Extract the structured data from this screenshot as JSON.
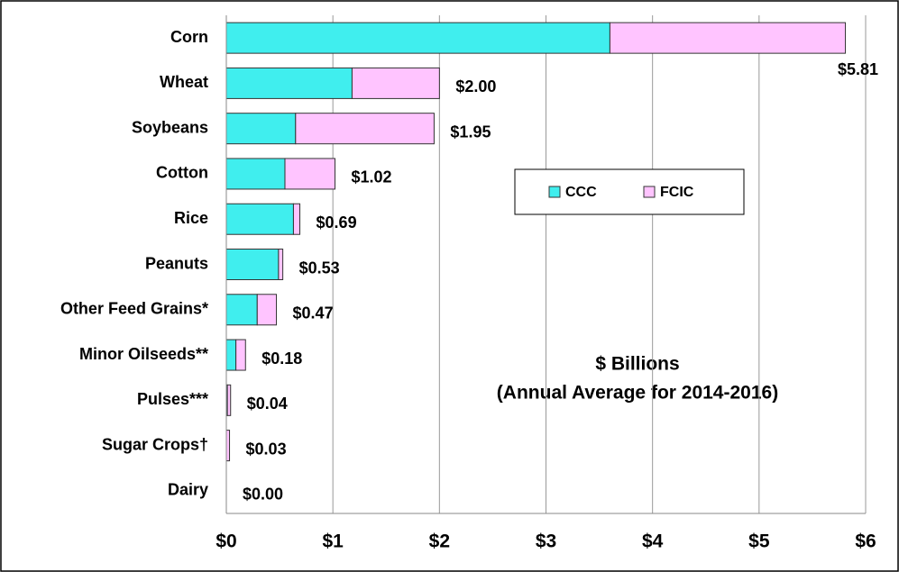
{
  "chart_data": {
    "type": "stacked-barh",
    "categories": [
      "Corn",
      "Wheat",
      "Soybeans",
      "Cotton",
      "Rice",
      "Peanuts",
      "Other Feed Grains*",
      "Minor Oilseeds**",
      "Pulses***",
      "Sugar Crops†",
      "Dairy"
    ],
    "series": [
      {
        "name": "CCC",
        "color": "#40eeee",
        "values": [
          3.6,
          1.18,
          0.65,
          0.55,
          0.63,
          0.49,
          0.29,
          0.09,
          0.01,
          0.0,
          0.0
        ]
      },
      {
        "name": "FCIC",
        "color": "#ffc4ff",
        "values": [
          2.21,
          0.82,
          1.3,
          0.47,
          0.06,
          0.04,
          0.18,
          0.09,
          0.03,
          0.03,
          0.0
        ]
      }
    ],
    "totals": [
      5.81,
      2.0,
      1.95,
      1.02,
      0.69,
      0.53,
      0.47,
      0.18,
      0.04,
      0.03,
      0.0
    ],
    "total_labels": [
      "$5.81",
      "$2.00",
      "$1.95",
      "$1.02",
      "$0.69",
      "$0.53",
      "$0.47",
      "$0.18",
      "$0.04",
      "$0.03",
      "$0.00"
    ],
    "xlim": [
      0,
      6
    ],
    "xticks": [
      {
        "value": 0,
        "label": "$0"
      },
      {
        "value": 1,
        "label": "$1"
      },
      {
        "value": 2,
        "label": "$2"
      },
      {
        "value": 3,
        "label": "$3"
      },
      {
        "value": 4,
        "label": "$4"
      },
      {
        "value": 5,
        "label": "$5"
      },
      {
        "value": 6,
        "label": "$6"
      }
    ],
    "grid": true,
    "legend": "upper right",
    "annotations": [
      "$ Billions",
      "(Annual Average for 2014-2016)"
    ]
  }
}
